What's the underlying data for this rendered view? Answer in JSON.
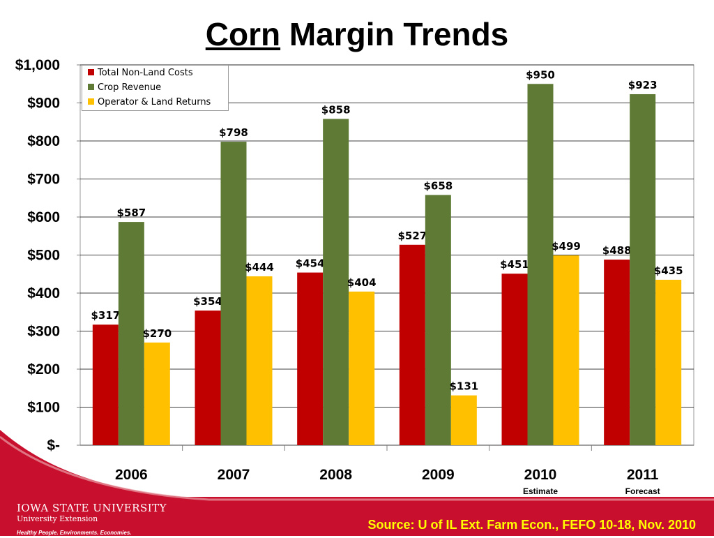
{
  "title": {
    "underlined": "Corn",
    "rest": " Margin Trends"
  },
  "chart_data": {
    "type": "bar",
    "title": "Corn Margin Trends",
    "categories": [
      "2006",
      "2007",
      "2008",
      "2009",
      "2010",
      "2011"
    ],
    "category_sublabels": [
      "",
      "",
      "",
      "",
      "Estimate",
      "Forecast"
    ],
    "series": [
      {
        "name": "Total Non-Land Costs",
        "color": "#c00000",
        "values": [
          317,
          354,
          454,
          527,
          451,
          488
        ]
      },
      {
        "name": "Crop Revenue",
        "color": "#5f7a35",
        "values": [
          587,
          798,
          858,
          658,
          950,
          923
        ]
      },
      {
        "name": "Operator & Land Returns",
        "color": "#ffc000",
        "values": [
          270,
          444,
          404,
          131,
          499,
          435
        ]
      }
    ],
    "data_labels": [
      [
        "$317",
        "$354",
        "$454",
        "$527",
        "$451",
        "$488"
      ],
      [
        "$587",
        "$798",
        "$858",
        "$658",
        "$950",
        "$923"
      ],
      [
        "$270",
        "$444",
        "$404",
        "$131",
        "$499",
        "$435"
      ]
    ],
    "ylim": [
      0,
      1000
    ],
    "yticks": [
      0,
      100,
      200,
      300,
      400,
      500,
      600,
      700,
      800,
      900,
      1000
    ],
    "ytick_labels": [
      "$-",
      "$100",
      "$200",
      "$300",
      "$400",
      "$500",
      "$600",
      "$700",
      "$800",
      "$900",
      "$1,000"
    ],
    "grid": true,
    "legend_position": "top-left",
    "xlabel": "",
    "ylabel": ""
  },
  "footer": {
    "org_name": "IOWA STATE UNIVERSITY",
    "org_unit": "University Extension",
    "tagline": "Healthy People. Environments. Economies.",
    "source": "Source: U of IL Ext. Farm Econ., FEFO 10-18, Nov. 2010"
  }
}
